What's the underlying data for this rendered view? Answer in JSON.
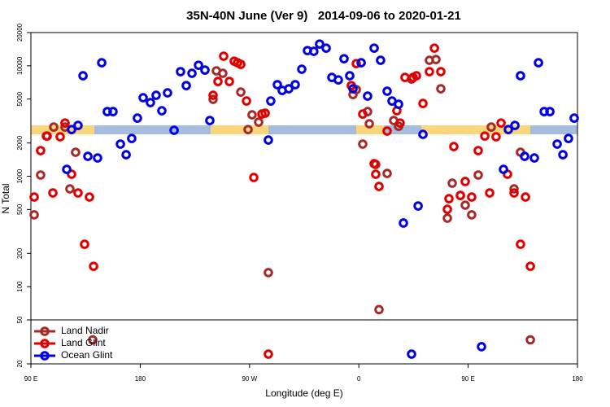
{
  "chart_data": {
    "type": "scatter",
    "title": "35N-40N June (Ver 9)   2014-09-06 to 2020-01-21",
    "xlabel": "Longitude (deg E)",
    "ylabel": "N Total",
    "xlim": [
      90,
      540
    ],
    "xticks": [
      {
        "value": 90,
        "label": "90 E"
      },
      180,
      {
        "value": 270,
        "label": "90 W"
      },
      {
        "value": 360,
        "label": "0"
      },
      {
        "value": 450,
        "label": "90 E"
      },
      {
        "value": 540,
        "label": "180"
      }
    ],
    "ylim": [
      20,
      20000
    ],
    "yticks": [
      20,
      50,
      100,
      200,
      500,
      1000,
      2000,
      5000,
      10000,
      20000
    ],
    "ylog": true,
    "separator": 50,
    "legend": "lower left",
    "series": [
      {
        "name": "Land Nadir",
        "color": "#a52a2a",
        "x": [
          92.7,
          98,
          102.7,
          108.8,
          118.1,
          122.1,
          126.8,
          140.9,
          242.7,
          248,
          240,
          262.8,
          268.8,
          272.1,
          277.5,
          285.5,
          355.2,
          357.9,
          363.2,
          367.2,
          368.6,
          373.9,
          383.3,
          376.6,
          388.7,
          392.7,
          403.4,
          418.1,
          423.5,
          427.5,
          432.9,
          436.9,
          443.6,
          447.6,
          452.9,
          458.3,
          469,
          487.8,
          493.1,
          501.2
        ],
        "values": [
          447,
          1026,
          2312,
          2788,
          2788,
          768,
          1648,
          33,
          8996,
          8552,
          4968,
          5784,
          2648,
          3598,
          3090,
          134,
          5496,
          6080,
          1954,
          3848,
          2986,
          1278,
          1060,
          62,
          3194,
          2836,
          7588,
          11220,
          11400,
          6194,
          417,
          865,
          670,
          547,
          447,
          1026,
          2788,
          768,
          1648,
          33
        ]
      },
      {
        "name": "Land Glint",
        "color": "#e00000",
        "x": [
          92.7,
          98,
          103.4,
          108.1,
          114.1,
          118.1,
          123.5,
          128.8,
          134.2,
          138.2,
          141.6,
          240,
          244,
          248.7,
          253.4,
          257.4,
          260.1,
          262.8,
          267.5,
          273.5,
          280.2,
          282.9,
          285.5,
          353.8,
          357.9,
          363.2,
          372.6,
          373.9,
          376.6,
          383.3,
          391.3,
          394,
          398,
          404.7,
          407.4,
          412.8,
          418.1,
          422.2,
          427.5,
          432.9,
          434.2,
          438.2,
          443.6,
          447.6,
          452.9,
          458.3,
          463.7,
          467.7,
          473,
          477.1,
          482.4,
          487.8,
          493.1,
          497.2,
          501.2
        ],
        "values": [
          648,
          1706,
          2312,
          706,
          2276,
          3034,
          1042,
          706,
          242,
          648,
          153,
          5408,
          7212,
          12218,
          7212,
          11016,
          10660,
          10300,
          4798,
          974,
          3658,
          3724,
          24.5,
          6620,
          10472,
          3658,
          1300,
          1042,
          808,
          2564,
          3918,
          3034,
          7852,
          7852,
          8124,
          4560,
          8852,
          14456,
          8852,
          502,
          626,
          1856,
          670,
          896,
          648,
          1706,
          2312,
          706,
          2276,
          3034,
          1042,
          706,
          242,
          648,
          153
        ]
      },
      {
        "name": "Ocean Glint",
        "color": "#0000e0",
        "x": [
          119.5,
          123.5,
          128.8,
          132.9,
          136.9,
          144.9,
          148.3,
          152.9,
          157.6,
          163.7,
          168.4,
          173,
          177.7,
          182.4,
          188.4,
          193.1,
          197.8,
          202.5,
          207.9,
          213.2,
          217.9,
          222.6,
          228,
          233.3,
          237.3,
          285.5,
          287.5,
          292.9,
          296.9,
          302.3,
          307.6,
          313,
          317.7,
          322.9,
          327.7,
          333.1,
          337.8,
          343.1,
          347.8,
          352.5,
          355.2,
          361.9,
          367.2,
          372.6,
          377.9,
          383.3,
          387.3,
          392.7,
          396.7,
          403.4,
          408.8,
          412.8,
          461,
          479.1,
          483.1,
          488.5,
          493.1,
          496.5,
          504.5,
          507.9,
          512.6,
          517.3,
          523.3,
          528,
          532.6,
          537.3
        ],
        "values": [
          1154,
          2648,
          2884,
          8124,
          1514,
          1464,
          10660,
          3848,
          3848,
          1954,
          1566,
          2198,
          3360,
          5140,
          4644,
          5408,
          3918,
          5688,
          2606,
          8852,
          6620,
          8552,
          10116,
          9146,
          3194,
          2126,
          4798,
          6746,
          5984,
          6194,
          6746,
          9312,
          13740,
          13520,
          15740,
          14456,
          7852,
          7448,
          11590,
          8124,
          6194,
          10660,
          5316,
          14456,
          11220,
          5888,
          4798,
          4484,
          377,
          24.5,
          538,
          2394,
          28.6,
          1154,
          2648,
          2884,
          8124,
          1514,
          1464,
          10660,
          3848,
          3848,
          1954,
          1566,
          2198,
          3360
        ]
      }
    ]
  }
}
